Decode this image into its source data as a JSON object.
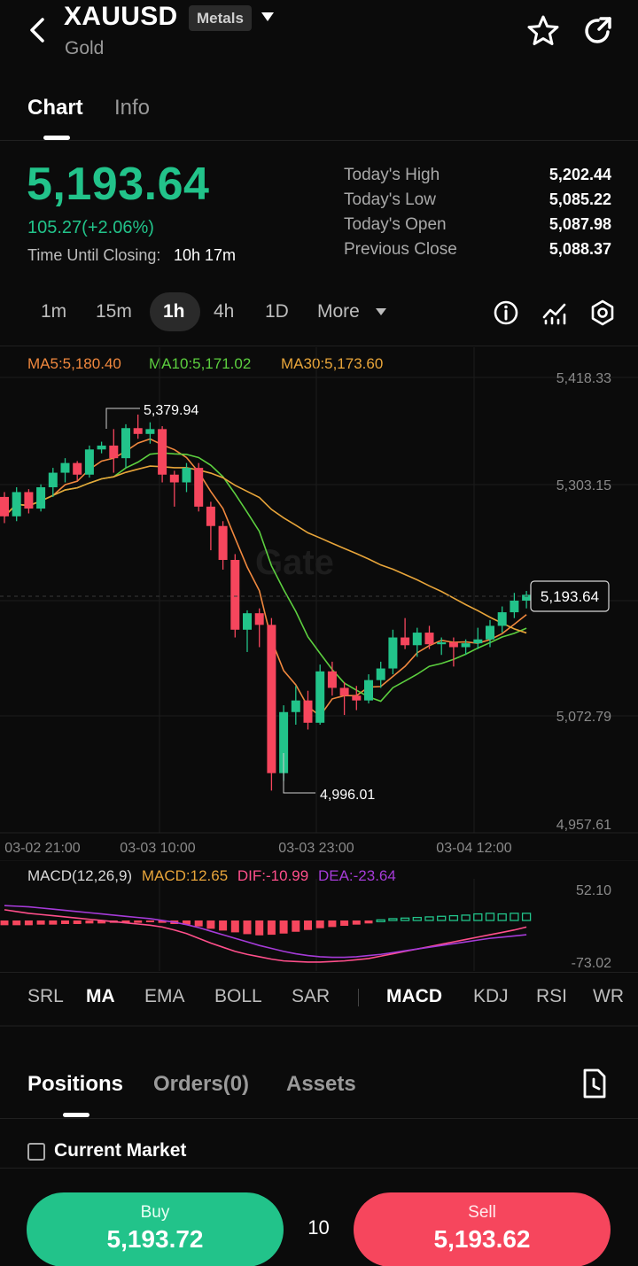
{
  "header": {
    "symbol": "XAUUSD",
    "tag": "Metals",
    "subtitle": "Gold"
  },
  "tabs": {
    "chart": "Chart",
    "info": "Info"
  },
  "quote": {
    "price": "5,193.64",
    "change": "105.27(+2.06%)",
    "closing_label": "Time Until Closing:",
    "closing_value": "10h 17m",
    "stats": [
      {
        "label": "Today's High",
        "value": "5,202.44"
      },
      {
        "label": "Today's Low",
        "value": "5,085.22"
      },
      {
        "label": "Today's Open",
        "value": "5,087.98"
      },
      {
        "label": "Previous Close",
        "value": "5,088.37"
      }
    ]
  },
  "intervals": [
    "1m",
    "15m",
    "1h",
    "4h",
    "1D",
    "More"
  ],
  "selected_interval": "1h",
  "ma_legend": {
    "ma5": "MA5:5,180.40",
    "ma10": "MA10:5,171.02",
    "ma30": "MA30:5,173.60"
  },
  "colors": {
    "up": "#22c38a",
    "down": "#f6465d",
    "ma5": "#f0883e",
    "ma10": "#5ccf3f",
    "ma30": "#e8a53a",
    "dif": "#ff4f8b",
    "dea": "#a53bd8"
  },
  "chart_data": {
    "type": "candlestick",
    "y_ticks": [
      "5,418.33",
      "5,303.15",
      "5,072.79",
      "4,957.61"
    ],
    "ylim": [
      4957.61,
      5418.33
    ],
    "x_ticks": [
      "03-02 21:00",
      "03-03 10:00",
      "03-03 23:00",
      "03-04 12:00"
    ],
    "high_annotation": "5,379.94",
    "low_annotation": "4,996.01",
    "last_price_label": "5,193.64",
    "watermark": "Gate",
    "candles": [
      [
        5295,
        5300,
        5268,
        5275
      ],
      [
        5275,
        5305,
        5270,
        5300
      ],
      [
        5300,
        5303,
        5278,
        5283
      ],
      [
        5283,
        5308,
        5280,
        5305
      ],
      [
        5305,
        5325,
        5295,
        5320
      ],
      [
        5320,
        5335,
        5310,
        5330
      ],
      [
        5330,
        5332,
        5312,
        5318
      ],
      [
        5318,
        5348,
        5315,
        5344
      ],
      [
        5344,
        5352,
        5340,
        5348
      ],
      [
        5348,
        5365,
        5320,
        5335
      ],
      [
        5335,
        5370,
        5325,
        5366
      ],
      [
        5366,
        5380,
        5355,
        5360
      ],
      [
        5360,
        5372,
        5350,
        5365
      ],
      [
        5365,
        5368,
        5310,
        5318
      ],
      [
        5318,
        5322,
        5285,
        5310
      ],
      [
        5310,
        5330,
        5300,
        5325
      ],
      [
        5325,
        5330,
        5280,
        5285
      ],
      [
        5285,
        5290,
        5240,
        5265
      ],
      [
        5265,
        5270,
        5220,
        5230
      ],
      [
        5230,
        5236,
        5150,
        5158
      ],
      [
        5158,
        5178,
        5135,
        5175
      ],
      [
        5175,
        5180,
        5140,
        5163
      ],
      [
        5163,
        5170,
        4992,
        5010
      ],
      [
        5010,
        5080,
        5002,
        5073
      ],
      [
        5073,
        5100,
        5060,
        5085
      ],
      [
        5085,
        5095,
        5055,
        5062
      ],
      [
        5062,
        5122,
        5060,
        5115
      ],
      [
        5115,
        5125,
        5090,
        5098
      ],
      [
        5098,
        5104,
        5070,
        5090
      ],
      [
        5090,
        5100,
        5075,
        5085
      ],
      [
        5085,
        5112,
        5082,
        5106
      ],
      [
        5106,
        5125,
        5098,
        5118
      ],
      [
        5118,
        5158,
        5112,
        5150
      ],
      [
        5150,
        5170,
        5138,
        5142
      ],
      [
        5142,
        5160,
        5130,
        5155
      ],
      [
        5155,
        5162,
        5138,
        5143
      ],
      [
        5143,
        5150,
        5132,
        5145
      ],
      [
        5145,
        5150,
        5120,
        5140
      ],
      [
        5140,
        5148,
        5132,
        5144
      ],
      [
        5144,
        5160,
        5138,
        5148
      ],
      [
        5148,
        5168,
        5140,
        5162
      ],
      [
        5162,
        5182,
        5155,
        5176
      ],
      [
        5176,
        5196,
        5170,
        5188
      ],
      [
        5188,
        5198,
        5180,
        5194
      ]
    ],
    "macd": {
      "legend": {
        "params": "MACD(12,26,9)",
        "macd": "MACD:12.65",
        "dif": "DIF:-10.99",
        "dea": "DEA:-23.64"
      },
      "y_ticks": [
        "52.10",
        "-73.02"
      ],
      "ylim": [
        -73.02,
        52.1
      ],
      "hist": [
        -8,
        -8,
        -8,
        -7,
        -7,
        -6,
        -6,
        -5,
        -5,
        -4,
        -4,
        -4,
        -3,
        -4,
        -6,
        -7,
        -10,
        -14,
        -17,
        -20,
        -23,
        -25,
        -24,
        -22,
        -19,
        -16,
        -13,
        -11,
        -9,
        -7,
        -5,
        1,
        3,
        4,
        5,
        6,
        7,
        8,
        9,
        11,
        12,
        11,
        12,
        12
      ],
      "dif": [
        18,
        15,
        12,
        10,
        8,
        6,
        4,
        2,
        0,
        -2,
        -4,
        -6,
        -8,
        -11,
        -16,
        -22,
        -30,
        -38,
        -45,
        -52,
        -57,
        -61,
        -65,
        -68,
        -69,
        -70,
        -70,
        -69,
        -68,
        -66,
        -64,
        -60,
        -56,
        -52,
        -48,
        -44,
        -40,
        -36,
        -32,
        -28,
        -24,
        -20,
        -16,
        -11
      ],
      "dea": [
        25,
        24,
        23,
        21,
        19,
        17,
        15,
        13,
        11,
        9,
        7,
        5,
        3,
        0,
        -3,
        -7,
        -12,
        -18,
        -24,
        -30,
        -36,
        -42,
        -47,
        -52,
        -56,
        -59,
        -61,
        -62,
        -62,
        -61,
        -59,
        -57,
        -54,
        -51,
        -48,
        -45,
        -42,
        -39,
        -36,
        -33,
        -30,
        -28,
        -26,
        -24
      ]
    }
  },
  "indicators": [
    "SRL",
    "MA",
    "EMA",
    "BOLL",
    "SAR",
    "MACD",
    "KDJ",
    "RSI",
    "WR"
  ],
  "positions_tabs": {
    "positions": "Positions",
    "orders": "Orders(0)",
    "assets": "Assets"
  },
  "current_market": "Current Market",
  "trade": {
    "buy_label": "Buy",
    "buy_price": "5,193.72",
    "qty": "10",
    "sell_label": "Sell",
    "sell_price": "5,193.62"
  }
}
